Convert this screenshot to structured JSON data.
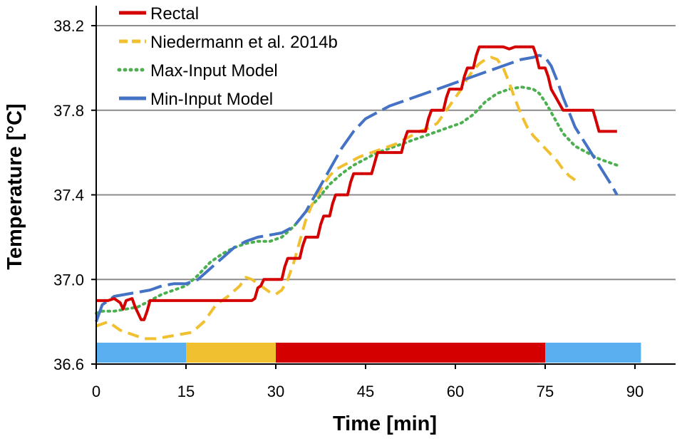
{
  "chart_data": {
    "type": "line",
    "xlabel": "Time [min]",
    "ylabel": "Temperature [°C]",
    "xlim": [
      0,
      90
    ],
    "ylim": [
      36.6,
      38.2
    ],
    "xticks": [
      "0",
      "15",
      "30",
      "45",
      "60",
      "75",
      "90"
    ],
    "yticks": [
      "36.6",
      "37.0",
      "37.4",
      "37.8",
      "38.2"
    ],
    "grid": "horizontal",
    "legend_position": "top-left",
    "series": [
      {
        "name": "Rectal",
        "color": "#d40000",
        "style": "solid",
        "points": [
          [
            0,
            36.9
          ],
          [
            2,
            36.9
          ],
          [
            3,
            36.91
          ],
          [
            4,
            36.89
          ],
          [
            4.5,
            36.86
          ],
          [
            5,
            36.9
          ],
          [
            6,
            36.91
          ],
          [
            6.5,
            36.87
          ],
          [
            7,
            36.84
          ],
          [
            7.5,
            36.81
          ],
          [
            8,
            36.81
          ],
          [
            8.5,
            36.85
          ],
          [
            9,
            36.9
          ],
          [
            10,
            36.9
          ],
          [
            12,
            36.9
          ],
          [
            20,
            36.9
          ],
          [
            26,
            36.9
          ],
          [
            26.5,
            36.91
          ],
          [
            27,
            36.96
          ],
          [
            27.5,
            36.97
          ],
          [
            28,
            37.0
          ],
          [
            31,
            37.0
          ],
          [
            31.5,
            37.06
          ],
          [
            32,
            37.1
          ],
          [
            34,
            37.1
          ],
          [
            34.5,
            37.16
          ],
          [
            35,
            37.2
          ],
          [
            37,
            37.2
          ],
          [
            37.5,
            37.26
          ],
          [
            38,
            37.3
          ],
          [
            39,
            37.3
          ],
          [
            39.5,
            37.36
          ],
          [
            40,
            37.4
          ],
          [
            42,
            37.4
          ],
          [
            42.5,
            37.46
          ],
          [
            43,
            37.5
          ],
          [
            46,
            37.5
          ],
          [
            46.5,
            37.55
          ],
          [
            47,
            37.6
          ],
          [
            51,
            37.6
          ],
          [
            51.5,
            37.66
          ],
          [
            52,
            37.7
          ],
          [
            55,
            37.7
          ],
          [
            55.5,
            37.76
          ],
          [
            56,
            37.8
          ],
          [
            58,
            37.8
          ],
          [
            58.5,
            37.86
          ],
          [
            59,
            37.9
          ],
          [
            61,
            37.9
          ],
          [
            61.5,
            37.96
          ],
          [
            62,
            38.0
          ],
          [
            63,
            38.0
          ],
          [
            63.5,
            38.06
          ],
          [
            64,
            38.1
          ],
          [
            68,
            38.1
          ],
          [
            69,
            38.09
          ],
          [
            70,
            38.1
          ],
          [
            73,
            38.1
          ],
          [
            73.5,
            38.06
          ],
          [
            74,
            38.0
          ],
          [
            75,
            38.0
          ],
          [
            75.5,
            37.96
          ],
          [
            76,
            37.9
          ],
          [
            77,
            37.85
          ],
          [
            78,
            37.8
          ],
          [
            83,
            37.8
          ],
          [
            83.5,
            37.75
          ],
          [
            84,
            37.7
          ],
          [
            87,
            37.7
          ]
        ]
      },
      {
        "name": "Niedermann et al. 2014b",
        "color": "#f0c030",
        "style": "dashed",
        "points": [
          [
            0,
            36.78
          ],
          [
            2,
            36.8
          ],
          [
            4,
            36.76
          ],
          [
            6,
            36.74
          ],
          [
            8,
            36.72
          ],
          [
            10,
            36.72
          ],
          [
            12,
            36.73
          ],
          [
            14,
            36.74
          ],
          [
            16,
            36.75
          ],
          [
            18,
            36.8
          ],
          [
            20,
            36.88
          ],
          [
            22,
            36.92
          ],
          [
            24,
            36.97
          ],
          [
            25,
            37.01
          ],
          [
            26,
            37.0
          ],
          [
            27,
            36.98
          ],
          [
            28,
            36.96
          ],
          [
            29,
            36.94
          ],
          [
            30,
            36.93
          ],
          [
            31,
            36.95
          ],
          [
            32,
            37.0
          ],
          [
            33,
            37.08
          ],
          [
            34,
            37.18
          ],
          [
            35,
            37.28
          ],
          [
            36,
            37.35
          ],
          [
            37,
            37.4
          ],
          [
            38,
            37.45
          ],
          [
            39,
            37.49
          ],
          [
            40,
            37.52
          ],
          [
            42,
            37.55
          ],
          [
            44,
            37.58
          ],
          [
            46,
            37.6
          ],
          [
            48,
            37.62
          ],
          [
            50,
            37.64
          ],
          [
            52,
            37.67
          ],
          [
            54,
            37.7
          ],
          [
            56,
            37.72
          ],
          [
            57,
            37.74
          ],
          [
            58,
            37.78
          ],
          [
            59,
            37.82
          ],
          [
            60,
            37.86
          ],
          [
            61,
            37.9
          ],
          [
            62,
            37.95
          ],
          [
            63,
            37.99
          ],
          [
            64,
            38.02
          ],
          [
            65,
            38.04
          ],
          [
            66,
            38.05
          ],
          [
            67,
            38.04
          ],
          [
            68,
            38.0
          ],
          [
            69,
            37.93
          ],
          [
            70,
            37.85
          ],
          [
            71,
            37.78
          ],
          [
            72,
            37.72
          ],
          [
            73,
            37.68
          ],
          [
            74,
            37.65
          ],
          [
            75,
            37.62
          ],
          [
            76,
            37.59
          ],
          [
            77,
            37.56
          ],
          [
            78,
            37.52
          ],
          [
            79,
            37.49
          ],
          [
            80,
            37.47
          ]
        ]
      },
      {
        "name": "Max-Input Model",
        "color": "#4caf50",
        "style": "dotted",
        "points": [
          [
            0,
            36.84
          ],
          [
            1,
            36.85
          ],
          [
            3,
            36.85
          ],
          [
            5,
            36.86
          ],
          [
            7,
            36.87
          ],
          [
            9,
            36.9
          ],
          [
            11,
            36.93
          ],
          [
            13,
            36.95
          ],
          [
            15,
            36.97
          ],
          [
            17,
            37.02
          ],
          [
            19,
            37.08
          ],
          [
            21,
            37.12
          ],
          [
            23,
            37.15
          ],
          [
            25,
            37.17
          ],
          [
            27,
            37.18
          ],
          [
            29,
            37.18
          ],
          [
            31,
            37.2
          ],
          [
            33,
            37.25
          ],
          [
            35,
            37.32
          ],
          [
            37,
            37.38
          ],
          [
            39,
            37.45
          ],
          [
            41,
            37.5
          ],
          [
            43,
            37.54
          ],
          [
            45,
            37.57
          ],
          [
            47,
            37.6
          ],
          [
            49,
            37.62
          ],
          [
            51,
            37.64
          ],
          [
            53,
            37.66
          ],
          [
            55,
            37.68
          ],
          [
            57,
            37.7
          ],
          [
            59,
            37.72
          ],
          [
            61,
            37.74
          ],
          [
            63,
            37.78
          ],
          [
            65,
            37.84
          ],
          [
            67,
            37.88
          ],
          [
            69,
            37.9
          ],
          [
            71,
            37.91
          ],
          [
            73,
            37.9
          ],
          [
            74,
            37.88
          ],
          [
            75,
            37.84
          ],
          [
            76,
            37.79
          ],
          [
            77,
            37.74
          ],
          [
            78,
            37.69
          ],
          [
            79,
            37.66
          ],
          [
            80,
            37.63
          ],
          [
            82,
            37.6
          ],
          [
            84,
            37.57
          ],
          [
            86,
            37.55
          ],
          [
            87,
            37.54
          ]
        ]
      },
      {
        "name": "Min-Input Model",
        "color": "#4472c4",
        "style": "long-dash",
        "points": [
          [
            0,
            36.8
          ],
          [
            1,
            36.88
          ],
          [
            3,
            36.92
          ],
          [
            5,
            36.93
          ],
          [
            7,
            36.94
          ],
          [
            9,
            36.95
          ],
          [
            11,
            36.97
          ],
          [
            13,
            36.98
          ],
          [
            15,
            36.98
          ],
          [
            17,
            37.0
          ],
          [
            19,
            37.05
          ],
          [
            21,
            37.1
          ],
          [
            23,
            37.15
          ],
          [
            25,
            37.18
          ],
          [
            27,
            37.2
          ],
          [
            29,
            37.21
          ],
          [
            31,
            37.22
          ],
          [
            33,
            37.25
          ],
          [
            35,
            37.32
          ],
          [
            37,
            37.42
          ],
          [
            39,
            37.52
          ],
          [
            41,
            37.62
          ],
          [
            43,
            37.7
          ],
          [
            45,
            37.76
          ],
          [
            47,
            37.79
          ],
          [
            49,
            37.82
          ],
          [
            51,
            37.84
          ],
          [
            53,
            37.86
          ],
          [
            55,
            37.88
          ],
          [
            57,
            37.9
          ],
          [
            59,
            37.92
          ],
          [
            61,
            37.94
          ],
          [
            63,
            37.96
          ],
          [
            65,
            37.98
          ],
          [
            67,
            38.0
          ],
          [
            69,
            38.02
          ],
          [
            71,
            38.04
          ],
          [
            73,
            38.05
          ],
          [
            74,
            38.06
          ],
          [
            75,
            38.05
          ],
          [
            76,
            38.01
          ],
          [
            77,
            37.94
          ],
          [
            78,
            37.86
          ],
          [
            79,
            37.79
          ],
          [
            80,
            37.72
          ],
          [
            82,
            37.63
          ],
          [
            84,
            37.54
          ],
          [
            86,
            37.45
          ],
          [
            87,
            37.4
          ]
        ]
      }
    ],
    "phase_bar": {
      "segments": [
        {
          "start": 0,
          "end": 15,
          "color": "#5aaff0"
        },
        {
          "start": 15,
          "end": 30,
          "color": "#f0c030"
        },
        {
          "start": 30,
          "end": 75,
          "color": "#d40000"
        },
        {
          "start": 75,
          "end": 91,
          "color": "#5aaff0"
        }
      ]
    }
  }
}
